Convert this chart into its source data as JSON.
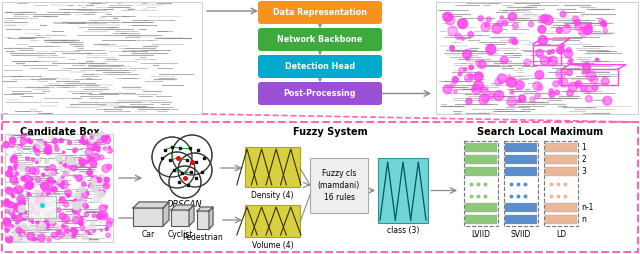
{
  "pipeline_boxes": [
    {
      "label": "Data Representation",
      "color": "#F5931E"
    },
    {
      "label": "Network Backbone",
      "color": "#3DAA3D"
    },
    {
      "label": "Detection Head",
      "color": "#00AACC"
    },
    {
      "label": "Post-Processing",
      "color": "#9B4FD4"
    }
  ],
  "bottom_border_color": "#FF69B4",
  "arrow_color": "#888888",
  "section_titles": {
    "candidate": "Candidate Box",
    "dbscan": "DBSCAN",
    "fuzzy": "Fuzzy System",
    "search": "Search Local Maximum"
  },
  "fuzzy_box_label": "Fuzzy cls\n(mamdani)\n16 rules",
  "density_label": "Density (4)",
  "volume_label": "Volume (4)",
  "class_label": "class (3)",
  "search_labels": [
    "LVIID",
    "SVIID",
    "LD"
  ],
  "search_row_labels": [
    "1",
    "2",
    "3",
    "",
    "",
    "n-1",
    "n"
  ],
  "green_color": "#8DC87A",
  "blue_color": "#5B8ECC",
  "orange_color": "#E8B898",
  "cyan_color": "#40C8C8",
  "yellow_color": "#D8D040",
  "yellow_edge": "#AAAA00"
}
